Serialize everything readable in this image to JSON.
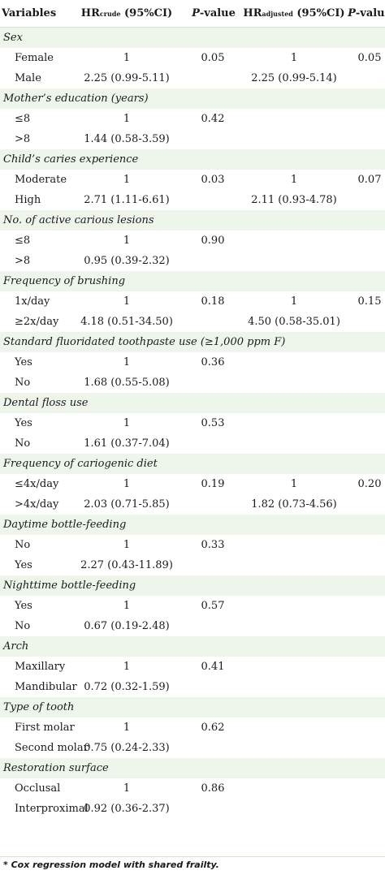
{
  "header": {
    "variables": "Variables",
    "hr_crude_main": "HR",
    "hr_crude_sub": "crude",
    "hr_crude_ci": "(95%CI)",
    "p_value_p": "P",
    "p_value_rest": "-value",
    "hr_adj_main": "HR",
    "hr_adj_sub": "adjusted",
    "hr_adj_ci": "(95%CI)",
    "p_value_adj_p": "P",
    "p_value_adj_rest": "-value"
  },
  "groups": [
    {
      "name": "Sex",
      "rows": [
        {
          "level": "Female",
          "hr": "1",
          "p": "0.05",
          "hra": "1",
          "pa": "0.05"
        },
        {
          "level": "Male",
          "hr": "2.25 (0.99-5.11)",
          "p": "",
          "hra": "2.25 (0.99-5.14)",
          "pa": ""
        }
      ]
    },
    {
      "name": "Mother’s education (years)",
      "rows": [
        {
          "level": "≤8",
          "hr": "1",
          "p": "0.42",
          "hra": "",
          "pa": ""
        },
        {
          "level": ">8",
          "hr": "1.44 (0.58-3.59)",
          "p": "",
          "hra": "",
          "pa": ""
        }
      ]
    },
    {
      "name": "Child’s caries experience",
      "rows": [
        {
          "level": "Moderate",
          "hr": "1",
          "p": "0.03",
          "hra": "1",
          "pa": "0.07"
        },
        {
          "level": "High",
          "hr": "2.71 (1.11-6.61)",
          "p": "",
          "hra": "2.11 (0.93-4.78)",
          "pa": ""
        }
      ]
    },
    {
      "name": "No. of active carious lesions",
      "rows": [
        {
          "level": "≤8",
          "hr": "1",
          "p": "0.90",
          "hra": "",
          "pa": ""
        },
        {
          "level": ">8",
          "hr": "0.95 (0.39-2.32)",
          "p": "",
          "hra": "",
          "pa": ""
        }
      ]
    },
    {
      "name": "Frequency of brushing",
      "rows": [
        {
          "level": "1x/day",
          "hr": "1",
          "p": "0.18",
          "hra": "1",
          "pa": "0.15"
        },
        {
          "level": "≥2x/day",
          "hr": "4.18 (0.51-34.50)",
          "p": "",
          "hra": "4.50 (0.58-35.01)",
          "pa": ""
        }
      ]
    },
    {
      "name": "Standard fluoridated toothpaste use (≥1,000 ppm F)",
      "rows": [
        {
          "level": "Yes",
          "hr": "1",
          "p": "0.36",
          "hra": "",
          "pa": ""
        },
        {
          "level": "No",
          "hr": "1.68 (0.55-5.08)",
          "p": "",
          "hra": "",
          "pa": ""
        }
      ]
    },
    {
      "name": "Dental floss use",
      "rows": [
        {
          "level": "Yes",
          "hr": "1",
          "p": "0.53",
          "hra": "",
          "pa": ""
        },
        {
          "level": "No",
          "hr": "1.61 (0.37-7.04)",
          "p": "",
          "hra": "",
          "pa": ""
        }
      ]
    },
    {
      "name": "Frequency of cariogenic diet",
      "rows": [
        {
          "level": "≤4x/day",
          "hr": "1",
          "p": "0.19",
          "hra": "1",
          "pa": "0.20"
        },
        {
          "level": ">4x/day",
          "hr": "2.03 (0.71-5.85)",
          "p": "",
          "hra": "1.82 (0.73-4.56)",
          "pa": ""
        }
      ]
    },
    {
      "name": "Daytime bottle-feeding",
      "rows": [
        {
          "level": "No",
          "hr": "1",
          "p": "0.33",
          "hra": "",
          "pa": ""
        },
        {
          "level": "Yes",
          "hr": "2.27 (0.43-11.89)",
          "p": "",
          "hra": "",
          "pa": ""
        }
      ]
    },
    {
      "name": "Nighttime bottle-feeding",
      "rows": [
        {
          "level": "Yes",
          "hr": "1",
          "p": "0.57",
          "hra": "",
          "pa": ""
        },
        {
          "level": "No",
          "hr": "0.67 (0.19-2.48)",
          "p": "",
          "hra": "",
          "pa": ""
        }
      ]
    },
    {
      "name": "Arch",
      "rows": [
        {
          "level": "Maxillary",
          "hr": "1",
          "p": "0.41",
          "hra": "",
          "pa": ""
        },
        {
          "level": "Mandibular",
          "hr": "0.72 (0.32-1.59)",
          "p": "",
          "hra": "",
          "pa": ""
        }
      ]
    },
    {
      "name": "Type of tooth",
      "rows": [
        {
          "level": "First molar",
          "hr": "1",
          "p": "0.62",
          "hra": "",
          "pa": ""
        },
        {
          "level": "Second molar",
          "hr": "0.75 (0.24-2.33)",
          "p": "",
          "hra": "",
          "pa": ""
        }
      ]
    },
    {
      "name": "Restoration surface",
      "rows": [
        {
          "level": "Occlusal",
          "hr": "1",
          "p": "0.86",
          "hra": "",
          "pa": ""
        },
        {
          "level": "Interproximal",
          "hr": "0.92 (0.36-2.37)",
          "p": "",
          "hra": "",
          "pa": ""
        }
      ]
    }
  ],
  "footnote": "* Cox regression model with shared frailty.",
  "colors": {
    "group_band": "#eef6eb",
    "rule": "#d6e6cf"
  }
}
